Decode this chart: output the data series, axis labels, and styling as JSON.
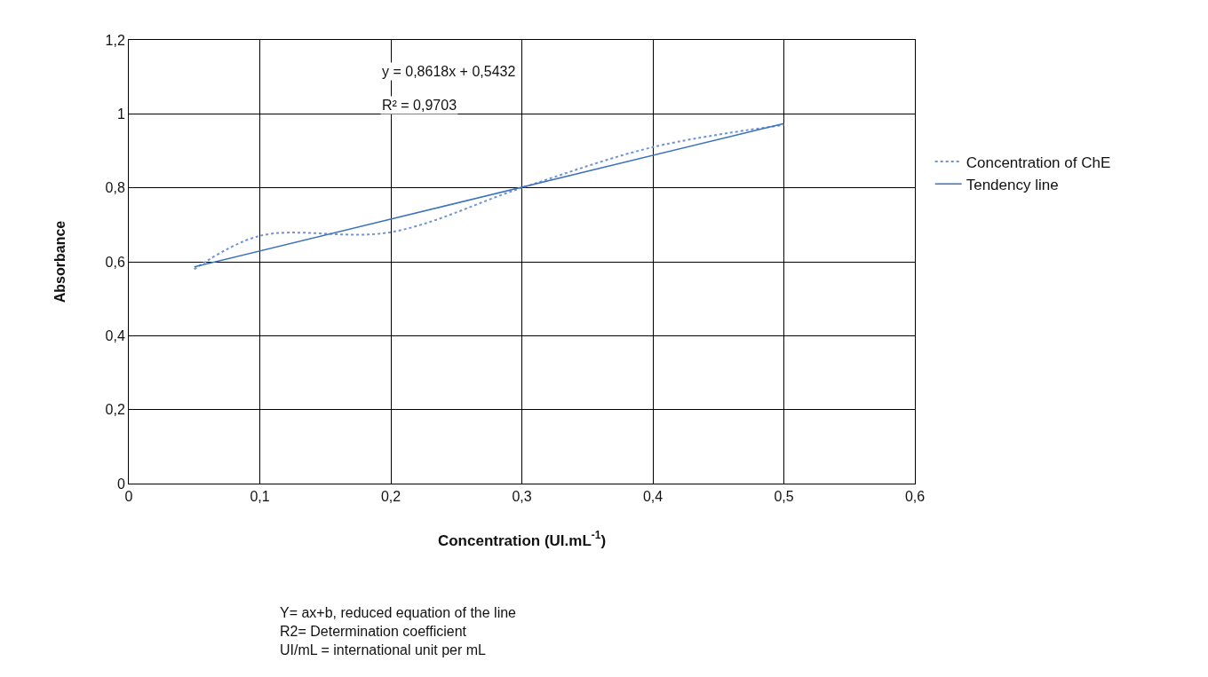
{
  "chart_data": {
    "type": "line",
    "xlabel": "Concentration (UI.mL$^{-1}$)",
    "ylabel": "Absorbance",
    "xlim": [
      0,
      0.6
    ],
    "xticks": [
      {
        "value": 0,
        "label": "0"
      },
      {
        "value": 0.1,
        "label": "0,1"
      },
      {
        "value": 0.2,
        "label": "0,2"
      },
      {
        "value": 0.3,
        "label": "0,3"
      },
      {
        "value": 0.4,
        "label": "0,4"
      },
      {
        "value": 0.5,
        "label": "0,5"
      },
      {
        "value": 0.6,
        "label": "0,6"
      }
    ],
    "ylim": [
      0,
      1.2
    ],
    "yticks": [
      {
        "value": 0,
        "label": "0"
      },
      {
        "value": 0.2,
        "label": "0,2"
      },
      {
        "value": 0.4,
        "label": "0,4"
      },
      {
        "value": 0.6,
        "label": "0,6"
      },
      {
        "value": 0.8,
        "label": "0,8"
      },
      {
        "value": 1,
        "label": "1"
      },
      {
        "value": 1.2,
        "label": "1,2"
      }
    ],
    "series": [
      {
        "name": "Concentration of ChE",
        "color": "#6f93d4",
        "line_style": "dotted",
        "x": [
          0.05,
          0.1,
          0.2,
          0.3,
          0.4,
          0.5
        ],
        "values": [
          0.58,
          0.67,
          0.68,
          0.8,
          0.91,
          0.97
        ]
      },
      {
        "name": "Tendency line",
        "color": "#3b72bf",
        "line_style": "solid",
        "x": [
          0.05,
          0.5
        ],
        "values": [
          0.586,
          0.974
        ]
      }
    ],
    "annotations": [
      "y = 0,8618x + 0,5432",
      "R² = 0,9703",
      "Y= ax+b, reduced equation of the line",
      "R2= Determination coefficient",
      "UI/mL = international unit per mL"
    ],
    "grid": true,
    "legend": "right",
    "marker": "none"
  }
}
